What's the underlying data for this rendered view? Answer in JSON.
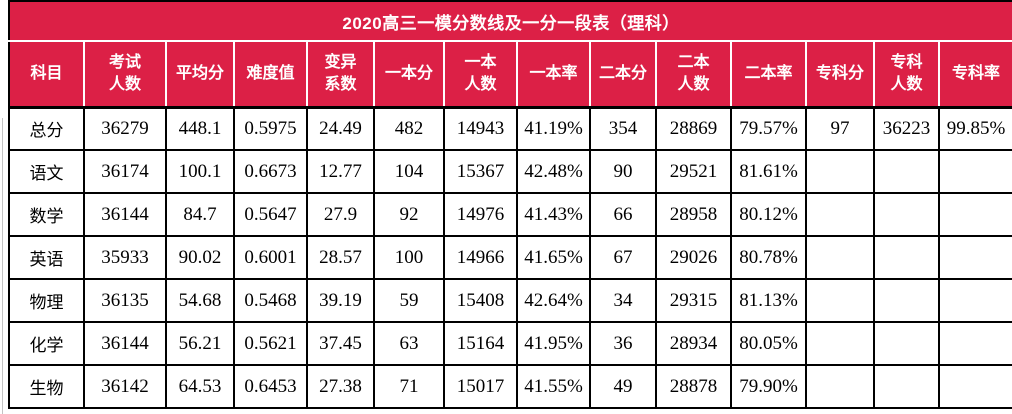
{
  "table": {
    "title": "2020高三一模分数线及一分一段表（理科）",
    "columns": [
      "科目",
      "考试\n人数",
      "平均分",
      "难度值",
      "变异\n系数",
      "一本分",
      "一本\n人数",
      "一本率",
      "二本分",
      "二本\n人数",
      "二本率",
      "专科分",
      "专科\n人数",
      "专科率"
    ],
    "rows": [
      {
        "subject": "总分",
        "values": [
          "36279",
          "448.1",
          "0.5975",
          "24.49",
          "482",
          "14943",
          "41.19%",
          "354",
          "28869",
          "79.57%",
          "97",
          "36223",
          "99.85%"
        ]
      },
      {
        "subject": "语文",
        "values": [
          "36174",
          "100.1",
          "0.6673",
          "12.77",
          "104",
          "15367",
          "42.48%",
          "90",
          "29521",
          "81.61%",
          "",
          "",
          ""
        ]
      },
      {
        "subject": "数学",
        "values": [
          "36144",
          "84.7",
          "0.5647",
          "27.9",
          "92",
          "14976",
          "41.43%",
          "66",
          "28958",
          "80.12%",
          "",
          "",
          ""
        ]
      },
      {
        "subject": "英语",
        "values": [
          "35933",
          "90.02",
          "0.6001",
          "28.57",
          "100",
          "14966",
          "41.65%",
          "67",
          "29026",
          "80.78%",
          "",
          "",
          ""
        ]
      },
      {
        "subject": "物理",
        "values": [
          "36135",
          "54.68",
          "0.5468",
          "39.19",
          "59",
          "15408",
          "42.64%",
          "34",
          "29315",
          "81.13%",
          "",
          "",
          ""
        ]
      },
      {
        "subject": "化学",
        "values": [
          "36144",
          "56.21",
          "0.5621",
          "37.45",
          "63",
          "15164",
          "41.95%",
          "36",
          "28934",
          "80.05%",
          "",
          "",
          ""
        ]
      },
      {
        "subject": "生物",
        "values": [
          "36142",
          "64.53",
          "0.6453",
          "27.38",
          "71",
          "15017",
          "41.55%",
          "49",
          "28878",
          "79.90%",
          "",
          "",
          ""
        ]
      }
    ]
  },
  "colors": {
    "header_background": "#dc2046",
    "header_text": "#ffffff",
    "body_text": "#000000",
    "grid_border": "#000000"
  }
}
